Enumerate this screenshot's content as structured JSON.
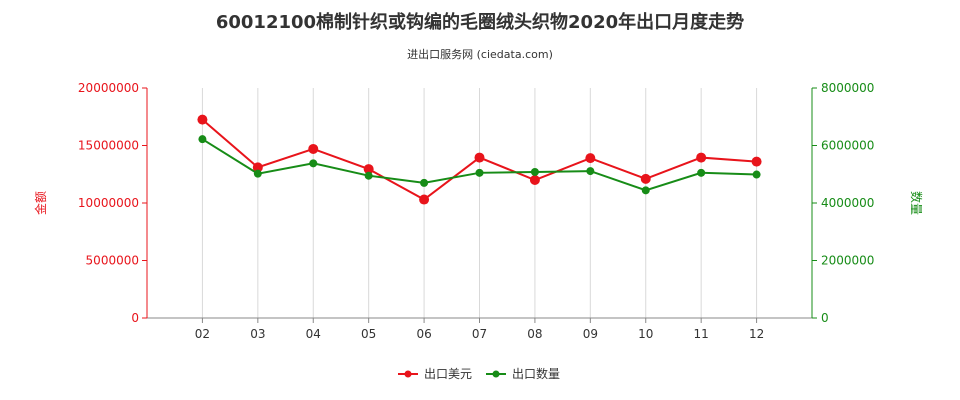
{
  "chart_data": {
    "type": "line",
    "title": "60012100棉制针织或钩编的毛圈绒头织物2020年出口月度走势",
    "subtitle": "进出口服务网 (ciedata.com)",
    "categories": [
      "02",
      "03",
      "04",
      "05",
      "06",
      "07",
      "08",
      "09",
      "10",
      "11",
      "12"
    ],
    "y_left": {
      "label": "金额",
      "ylim": [
        0,
        20000000
      ],
      "ticks": [
        "0",
        "5000000",
        "10000000",
        "15000000",
        "20000000"
      ],
      "color": "#e8141b"
    },
    "y_right": {
      "label": "数量",
      "ylim": [
        0,
        8000000
      ],
      "ticks": [
        "0",
        "2000000",
        "4000000",
        "6000000",
        "8000000"
      ],
      "color": "#178c17"
    },
    "series": [
      {
        "name": "出口美元",
        "axis": "left",
        "color": "#e8141b",
        "values": [
          17250000,
          13100000,
          14700000,
          12950000,
          10300000,
          13950000,
          12000000,
          13900000,
          12100000,
          13950000,
          13600000
        ]
      },
      {
        "name": "出口数量",
        "axis": "right",
        "color": "#178c17",
        "values": [
          6220000,
          5020000,
          5380000,
          4950000,
          4700000,
          5050000,
          5080000,
          5110000,
          4440000,
          5050000,
          4990000
        ]
      }
    ],
    "grid": "vertical",
    "legend_position": "bottom-center"
  }
}
